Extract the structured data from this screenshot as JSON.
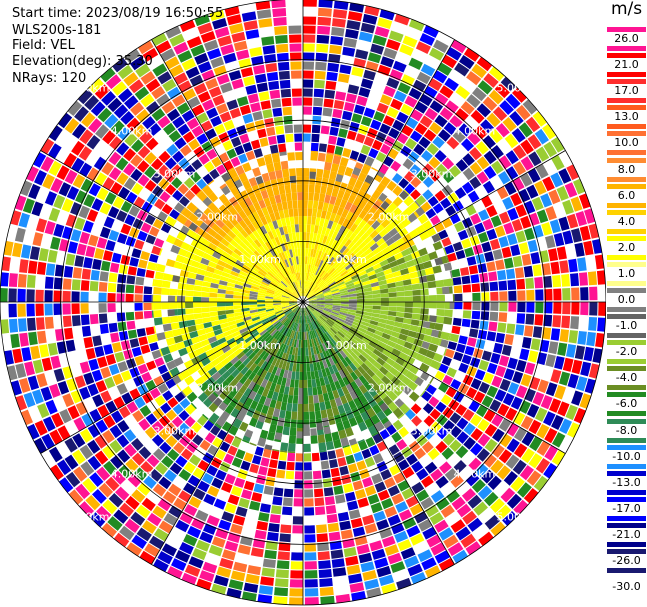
{
  "header": {
    "start_time": "Start time: 2023/08/19 16:50:55",
    "instrument": "WLS200s-181",
    "field": "Field: VEL",
    "elevation": "Elevation(deg): 35.30",
    "nrays": "NRays: 120"
  },
  "chart_data": {
    "type": "heatmap",
    "plot_kind": "polar PPI scan",
    "range_rings_km": [
      "1.00km",
      "2.00km",
      "3.00km",
      "4.00km",
      "5.00km"
    ],
    "max_range_km": 5.0,
    "nrays": 120,
    "colorbar": {
      "title": "m/s",
      "ticks": [
        "26.0",
        "21.0",
        "17.0",
        "13.0",
        "10.0",
        "8.0",
        "6.0",
        "4.0",
        "2.0",
        "1.0",
        "0.0",
        "-1.0",
        "-2.0",
        "-4.0",
        "-6.0",
        "-8.0",
        "-10.0",
        "-13.0",
        "-17.0",
        "-21.0",
        "-26.0",
        "-30.0"
      ],
      "colors": [
        "#ff1493",
        "#ff0000",
        "#ff2d2d",
        "#ff5a1e",
        "#ff7032",
        "#ff8c32",
        "#ffb400",
        "#ffd200",
        "#ffff00",
        "#ffff8c",
        "#808080",
        "#646464",
        "#9acd32",
        "#6b8e23",
        "#228b22",
        "#2e8b57",
        "#1e90ff",
        "#0000cd",
        "#0000ff",
        "#00008b",
        "#191970"
      ]
    },
    "near_field": {
      "north_half_dominant_m_s": "2.0 to 6.0",
      "south_east_dominant_m_s": "-2.0 to -8.0",
      "noise_beyond_km": 2.5
    }
  }
}
